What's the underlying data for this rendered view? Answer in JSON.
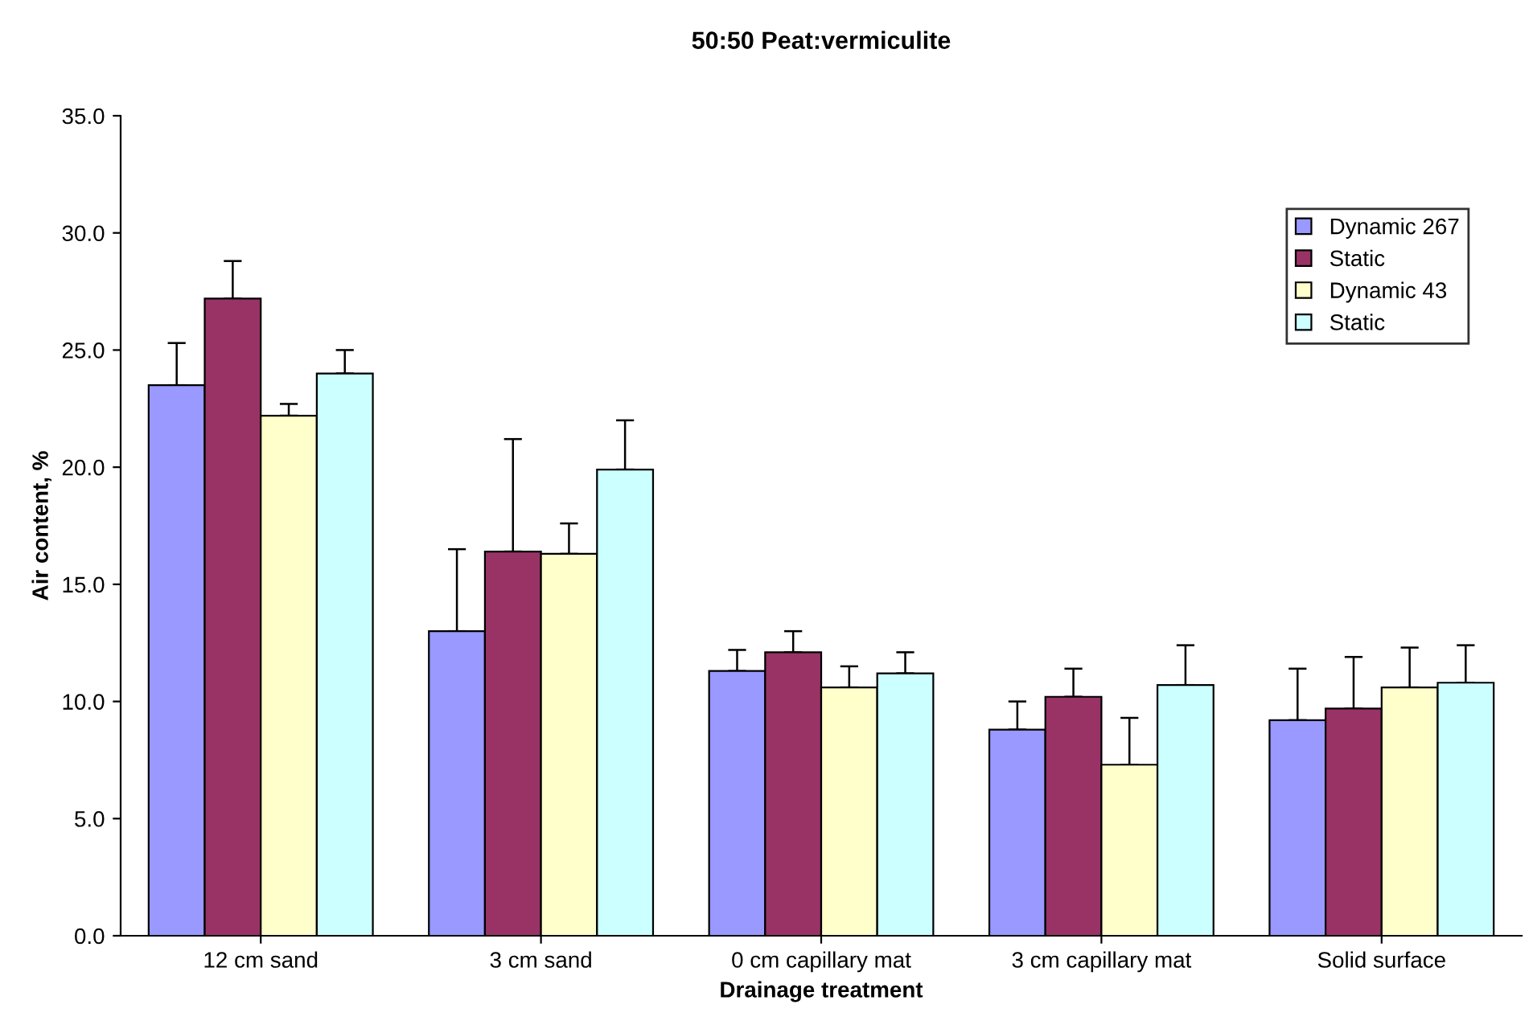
{
  "chart_data": {
    "type": "bar",
    "title": "50:50 Peat:vermiculite",
    "xlabel": "Drainage treatment",
    "ylabel": "Air content, %",
    "categories": [
      "12 cm sand",
      "3 cm sand",
      "0 cm capillary mat",
      "3 cm capillary mat",
      "Solid surface"
    ],
    "series": [
      {
        "name": "Dynamic 267",
        "color": "#9999ff",
        "values": [
          23.5,
          13.0,
          11.3,
          8.8,
          9.2
        ],
        "errors": [
          [
            23.5,
            25.3
          ],
          [
            13.0,
            16.5
          ],
          [
            11.3,
            12.2
          ],
          [
            8.8,
            10.0
          ],
          [
            9.2,
            11.4
          ]
        ]
      },
      {
        "name": "Static",
        "color": "#993366",
        "values": [
          27.2,
          16.4,
          12.1,
          10.2,
          9.7
        ],
        "errors": [
          [
            27.2,
            28.8
          ],
          [
            16.4,
            21.2
          ],
          [
            12.1,
            13.0
          ],
          [
            10.2,
            11.4
          ],
          [
            9.7,
            11.9
          ]
        ]
      },
      {
        "name": "Dynamic 43",
        "color": "#ffffcc",
        "values": [
          22.2,
          16.3,
          10.6,
          7.3,
          10.6
        ],
        "errors": [
          [
            22.2,
            22.7
          ],
          [
            16.3,
            17.6
          ],
          [
            10.6,
            11.5
          ],
          [
            7.3,
            9.3
          ],
          [
            10.6,
            12.3
          ]
        ]
      },
      {
        "name": "Static",
        "color": "#ccffff",
        "values": [
          24.0,
          19.9,
          11.2,
          10.7,
          10.8
        ],
        "errors": [
          [
            24.0,
            25.0
          ],
          [
            19.9,
            22.0
          ],
          [
            11.2,
            12.1
          ],
          [
            10.7,
            12.4
          ],
          [
            10.8,
            12.4
          ]
        ]
      }
    ],
    "ylim": [
      0,
      35
    ],
    "yticks": [
      {
        "value": 0,
        "label": "0.0"
      },
      {
        "value": 5,
        "label": "5.0"
      },
      {
        "value": 10,
        "label": "10.0"
      },
      {
        "value": 15,
        "label": "15.0"
      },
      {
        "value": 20,
        "label": "20.0"
      },
      {
        "value": 25,
        "label": "25.0"
      },
      {
        "value": 30,
        "label": "30.0"
      },
      {
        "value": 35,
        "label": "35.0"
      }
    ],
    "grid": false,
    "legend": "top right"
  }
}
